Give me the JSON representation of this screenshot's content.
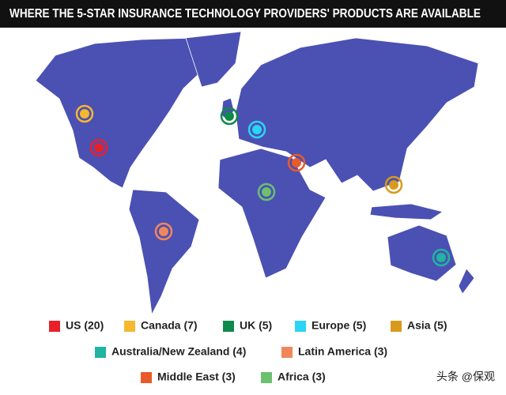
{
  "header": {
    "title": "WHERE THE 5-STAR INSURANCE TECHNOLOGY PROVIDERS' PRODUCTS ARE AVAILABLE"
  },
  "legend": [
    {
      "label": "US (20)",
      "color": "#e8202a"
    },
    {
      "label": "Canada (7)",
      "color": "#f5b82e"
    },
    {
      "label": "UK (5)",
      "color": "#0f8a4a"
    },
    {
      "label": "Europe (5)",
      "color": "#2ad4f5"
    },
    {
      "label": "Asia (5)",
      "color": "#d99a1c"
    },
    {
      "label": "Australia/New Zealand (4)",
      "color": "#1fb5a0"
    },
    {
      "label": "Latin America (3)",
      "color": "#f0875a"
    },
    {
      "label": "Middle East (3)",
      "color": "#e85a2a"
    },
    {
      "label": "Africa (3)",
      "color": "#6cc070"
    }
  ],
  "watermark": "头条 @保观"
}
